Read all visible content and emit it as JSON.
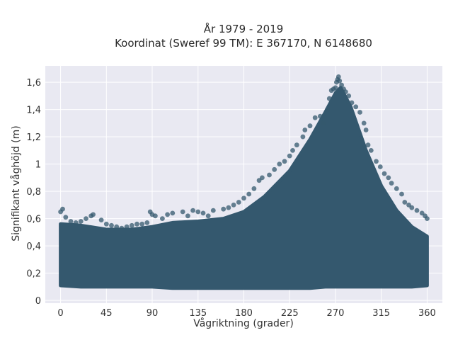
{
  "chart_data": {
    "type": "scatter",
    "title": "År 1979 - 2019",
    "subtitle": "Koordinat (Sweref 99 TM): E 367170, N 6148680",
    "xlabel": "Vågriktning (grader)",
    "ylabel": "Signifikant våghöjd (m)",
    "xlim": [
      -15,
      375
    ],
    "ylim": [
      -0.02,
      1.72
    ],
    "x_ticks": [
      {
        "value": 0,
        "label": "0"
      },
      {
        "value": 45,
        "label": "45"
      },
      {
        "value": 90,
        "label": "90"
      },
      {
        "value": 135,
        "label": "135"
      },
      {
        "value": 180,
        "label": "180"
      },
      {
        "value": 225,
        "label": "225"
      },
      {
        "value": 270,
        "label": "270"
      },
      {
        "value": 315,
        "label": "315"
      },
      {
        "value": 360,
        "label": "360"
      }
    ],
    "y_ticks": [
      {
        "value": 0,
        "label": "0"
      },
      {
        "value": 0.2,
        "label": "0,2"
      },
      {
        "value": 0.4,
        "label": "0,4"
      },
      {
        "value": 0.6,
        "label": "0,6"
      },
      {
        "value": 0.8,
        "label": "0,8"
      },
      {
        "value": 1.0,
        "label": "1"
      },
      {
        "value": 1.2,
        "label": "1,2"
      },
      {
        "value": 1.4,
        "label": "1,4"
      },
      {
        "value": 1.6,
        "label": "1,6"
      }
    ],
    "grid": true,
    "marker_color": "#34586e",
    "background_color": "#e9e9f2",
    "density_envelope": {
      "x": [
        0,
        20,
        45,
        70,
        90,
        110,
        135,
        160,
        180,
        200,
        225,
        245,
        260,
        270,
        275,
        285,
        300,
        315,
        330,
        345,
        360
      ],
      "lower": [
        0.11,
        0.1,
        0.1,
        0.1,
        0.1,
        0.09,
        0.09,
        0.09,
        0.09,
        0.09,
        0.09,
        0.09,
        0.1,
        0.1,
        0.1,
        0.1,
        0.1,
        0.1,
        0.1,
        0.1,
        0.11
      ],
      "upper": [
        0.56,
        0.55,
        0.52,
        0.52,
        0.54,
        0.57,
        0.58,
        0.6,
        0.65,
        0.76,
        0.95,
        1.18,
        1.38,
        1.52,
        1.56,
        1.42,
        1.1,
        0.84,
        0.66,
        0.54,
        0.47
      ]
    },
    "points": [
      [
        0,
        0.65
      ],
      [
        2,
        0.67
      ],
      [
        5,
        0.61
      ],
      [
        10,
        0.58
      ],
      [
        15,
        0.57
      ],
      [
        20,
        0.58
      ],
      [
        25,
        0.6
      ],
      [
        30,
        0.62
      ],
      [
        32,
        0.63
      ],
      [
        40,
        0.59
      ],
      [
        45,
        0.56
      ],
      [
        50,
        0.55
      ],
      [
        55,
        0.54
      ],
      [
        60,
        0.53
      ],
      [
        65,
        0.54
      ],
      [
        70,
        0.55
      ],
      [
        75,
        0.56
      ],
      [
        80,
        0.56
      ],
      [
        85,
        0.57
      ],
      [
        88,
        0.65
      ],
      [
        90,
        0.63
      ],
      [
        93,
        0.62
      ],
      [
        100,
        0.6
      ],
      [
        105,
        0.63
      ],
      [
        110,
        0.64
      ],
      [
        120,
        0.65
      ],
      [
        125,
        0.62
      ],
      [
        130,
        0.66
      ],
      [
        135,
        0.65
      ],
      [
        140,
        0.64
      ],
      [
        145,
        0.62
      ],
      [
        150,
        0.66
      ],
      [
        160,
        0.67
      ],
      [
        165,
        0.68
      ],
      [
        170,
        0.7
      ],
      [
        175,
        0.72
      ],
      [
        180,
        0.75
      ],
      [
        185,
        0.78
      ],
      [
        190,
        0.82
      ],
      [
        195,
        0.88
      ],
      [
        198,
        0.9
      ],
      [
        205,
        0.92
      ],
      [
        210,
        0.96
      ],
      [
        215,
        1.0
      ],
      [
        220,
        1.02
      ],
      [
        225,
        1.06
      ],
      [
        228,
        1.1
      ],
      [
        232,
        1.14
      ],
      [
        238,
        1.2
      ],
      [
        240,
        1.25
      ],
      [
        245,
        1.28
      ],
      [
        250,
        1.34
      ],
      [
        255,
        1.35
      ],
      [
        258,
        1.3
      ],
      [
        262,
        1.4
      ],
      [
        264,
        1.48
      ],
      [
        266,
        1.54
      ],
      [
        268,
        1.55
      ],
      [
        270,
        1.56
      ],
      [
        271,
        1.6
      ],
      [
        272,
        1.62
      ],
      [
        273,
        1.64
      ],
      [
        274,
        1.61
      ],
      [
        276,
        1.58
      ],
      [
        278,
        1.55
      ],
      [
        280,
        1.53
      ],
      [
        283,
        1.5
      ],
      [
        286,
        1.45
      ],
      [
        290,
        1.42
      ],
      [
        294,
        1.38
      ],
      [
        298,
        1.3
      ],
      [
        300,
        1.25
      ],
      [
        302,
        1.14
      ],
      [
        305,
        1.1
      ],
      [
        310,
        1.02
      ],
      [
        314,
        0.98
      ],
      [
        318,
        0.93
      ],
      [
        322,
        0.9
      ],
      [
        325,
        0.86
      ],
      [
        330,
        0.82
      ],
      [
        335,
        0.78
      ],
      [
        338,
        0.72
      ],
      [
        342,
        0.7
      ],
      [
        345,
        0.68
      ],
      [
        350,
        0.66
      ],
      [
        355,
        0.64
      ],
      [
        358,
        0.62
      ],
      [
        360,
        0.6
      ]
    ]
  }
}
